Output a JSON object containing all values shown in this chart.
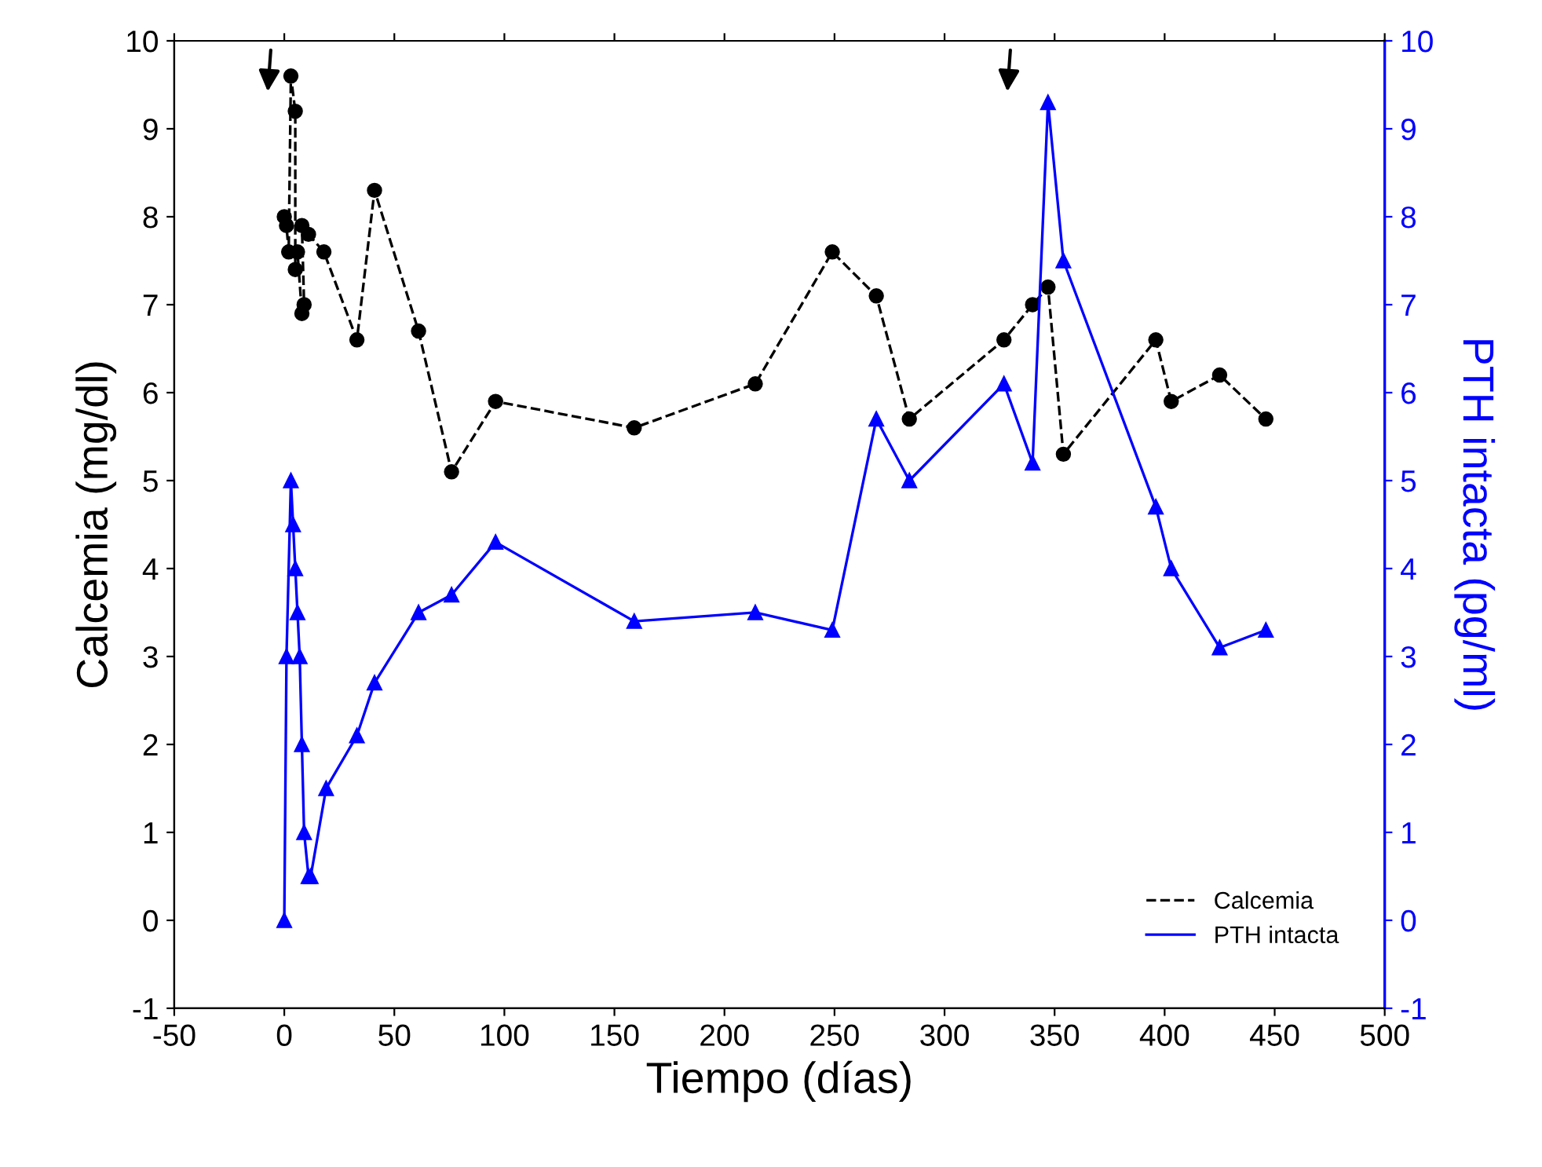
{
  "chart_data": {
    "type": "line",
    "xlabel": "Tiempo (días)",
    "ylabel": "Calcemia (mg/dl)",
    "y2label": "PTH intacta (pg/ml)",
    "xlim": [
      -50,
      500
    ],
    "xticks": [
      -50,
      0,
      50,
      100,
      150,
      200,
      250,
      300,
      350,
      400,
      450,
      500
    ],
    "ylim": [
      -1,
      10
    ],
    "yticks": [
      -1,
      0,
      1,
      2,
      3,
      4,
      5,
      6,
      7,
      8,
      9,
      10
    ],
    "y2lim": [
      -1,
      10
    ],
    "y2ticks": [
      -1,
      0,
      1,
      2,
      3,
      4,
      5,
      6,
      7,
      8,
      9,
      10
    ],
    "grid": false,
    "legend": "bottom right",
    "series": [
      {
        "name": "Calcemia",
        "color": "#000000",
        "line_style": "dashed",
        "marker": "circle",
        "x": [
          0,
          1,
          2,
          3,
          5,
          5,
          6,
          8,
          9,
          8,
          11,
          18,
          33,
          41,
          61,
          76,
          96,
          159,
          214,
          249,
          269,
          284,
          327,
          340,
          347,
          354,
          396,
          403,
          425,
          446
        ],
        "values": [
          8.0,
          7.9,
          7.6,
          9.6,
          9.2,
          7.4,
          7.6,
          6.9,
          7.0,
          7.9,
          7.8,
          7.6,
          6.6,
          8.3,
          6.7,
          5.1,
          5.9,
          5.6,
          6.1,
          7.6,
          7.1,
          5.7,
          6.6,
          7.0,
          7.2,
          5.3,
          6.6,
          5.9,
          6.2,
          5.7
        ]
      },
      {
        "name": "PTH intacta",
        "color": "#0000ff",
        "line_style": "solid",
        "marker": "triangle",
        "axis": "y2",
        "x": [
          0,
          1,
          3,
          4,
          5,
          6,
          7,
          8,
          9,
          11,
          12,
          19,
          33,
          41,
          61,
          76,
          96,
          159,
          214,
          249,
          269,
          284,
          327,
          340,
          347,
          354,
          396,
          403,
          425,
          446
        ],
        "values": [
          0,
          3.0,
          5.0,
          4.5,
          4.0,
          3.5,
          3.0,
          2.0,
          1.0,
          0.5,
          0.5,
          1.5,
          2.1,
          2.7,
          3.5,
          3.7,
          4.3,
          3.4,
          3.5,
          3.3,
          5.7,
          5.0,
          6.1,
          5.2,
          9.3,
          7.5,
          4.7,
          4.0,
          3.1,
          3.3
        ]
      }
    ]
  }
}
